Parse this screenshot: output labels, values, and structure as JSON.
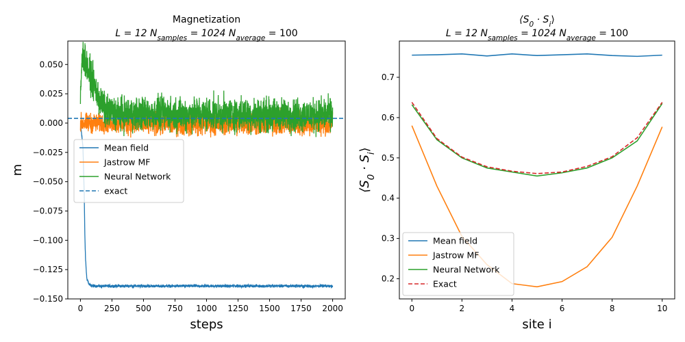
{
  "chart_data": [
    {
      "type": "line",
      "title_line1": "Magnetization",
      "title_line2_parts": {
        "prefix": "L = 12 N",
        "sub1": "samples",
        "mid": " = 1024 N",
        "sub2": "average",
        "suffix": " = 100"
      },
      "xlabel": "steps",
      "ylabel": "m",
      "xlim": [
        -100,
        2100
      ],
      "ylim": [
        -0.15,
        0.07
      ],
      "xticks": [
        0,
        250,
        500,
        750,
        1000,
        1250,
        1500,
        1750,
        2000
      ],
      "yticks": [
        -0.15,
        -0.125,
        -0.1,
        -0.075,
        -0.05,
        -0.025,
        0.0,
        0.025,
        0.05
      ],
      "ytick_labels": [
        "−0.150",
        "−0.125",
        "−0.100",
        "−0.075",
        "−0.050",
        "−0.025",
        "0.000",
        "0.025",
        "0.050"
      ],
      "legend_position": "center-left",
      "series": [
        {
          "name": "Mean field",
          "color": "#1f77b4",
          "style": "solid",
          "x": [
            0,
            20,
            30,
            35,
            40,
            50,
            70,
            100,
            500,
            1000,
            1500,
            2000
          ],
          "y": [
            0.0,
            -0.02,
            -0.06,
            -0.095,
            -0.115,
            -0.132,
            -0.138,
            -0.139,
            -0.139,
            -0.139,
            -0.139,
            -0.139
          ],
          "noise": 0.001,
          "steps": 2000
        },
        {
          "name": "Jastrow MF",
          "color": "#ff7f0e",
          "style": "solid",
          "x": [
            0,
            100,
            200,
            300,
            2000
          ],
          "y": [
            0.0,
            0.0,
            0.0,
            0.0,
            0.0
          ],
          "noise": 0.007,
          "steps": 2000
        },
        {
          "name": "Neural Network",
          "color": "#2ca02c",
          "style": "solid",
          "x": [
            0,
            10,
            20,
            30,
            60,
            100,
            150,
            200,
            300,
            500,
            1000,
            1500,
            2000
          ],
          "y": [
            0.02,
            0.05,
            0.058,
            0.055,
            0.045,
            0.035,
            0.02,
            0.01,
            0.008,
            0.008,
            0.008,
            0.007,
            0.007
          ],
          "noise": 0.012,
          "steps": 2000
        },
        {
          "name": "exact",
          "color": "#1f77b4",
          "style": "dashed",
          "x": [
            -100,
            2100
          ],
          "y": [
            0.004,
            0.004
          ]
        }
      ]
    },
    {
      "type": "line",
      "title_line1_parts": {
        "open": "⟨S",
        "sub0": "0",
        "dot": " · S",
        "subi": "i",
        "close": "⟩"
      },
      "title_line2_parts": {
        "prefix": "L = 12  N",
        "sub1": "samples",
        "mid": " = 1024 N",
        "sub2": "average",
        "suffix": " = 100"
      },
      "xlabel": "site i",
      "ylabel_parts": {
        "open": "⟨S",
        "sub0": "0",
        "dot": " · S",
        "subi": "i",
        "close": "⟩"
      },
      "xlim": [
        -0.5,
        10.5
      ],
      "ylim": [
        0.15,
        0.79
      ],
      "xticks": [
        0,
        2,
        4,
        6,
        8,
        10
      ],
      "yticks": [
        0.2,
        0.3,
        0.4,
        0.5,
        0.6,
        0.7
      ],
      "ytick_labels": [
        "0.2",
        "0.3",
        "0.4",
        "0.5",
        "0.6",
        "0.7"
      ],
      "legend_position": "lower-left",
      "x": [
        0,
        1,
        2,
        3,
        4,
        5,
        6,
        7,
        8,
        9,
        10
      ],
      "series": [
        {
          "name": "Mean field",
          "color": "#1f77b4",
          "style": "solid",
          "values": [
            0.755,
            0.756,
            0.758,
            0.753,
            0.758,
            0.754,
            0.756,
            0.758,
            0.754,
            0.752,
            0.755
          ]
        },
        {
          "name": "Jastrow MF",
          "color": "#ff7f0e",
          "style": "solid",
          "values": [
            0.58,
            0.43,
            0.305,
            0.235,
            0.188,
            0.18,
            0.193,
            0.23,
            0.303,
            0.43,
            0.577
          ]
        },
        {
          "name": "Neural Network",
          "color": "#2ca02c",
          "style": "solid",
          "values": [
            0.632,
            0.545,
            0.5,
            0.475,
            0.465,
            0.455,
            0.463,
            0.475,
            0.5,
            0.542,
            0.635
          ]
        },
        {
          "name": "Exact",
          "color": "#d62728",
          "style": "dashed",
          "values": [
            0.638,
            0.548,
            0.502,
            0.478,
            0.467,
            0.461,
            0.465,
            0.479,
            0.503,
            0.55,
            0.638
          ]
        }
      ]
    }
  ]
}
